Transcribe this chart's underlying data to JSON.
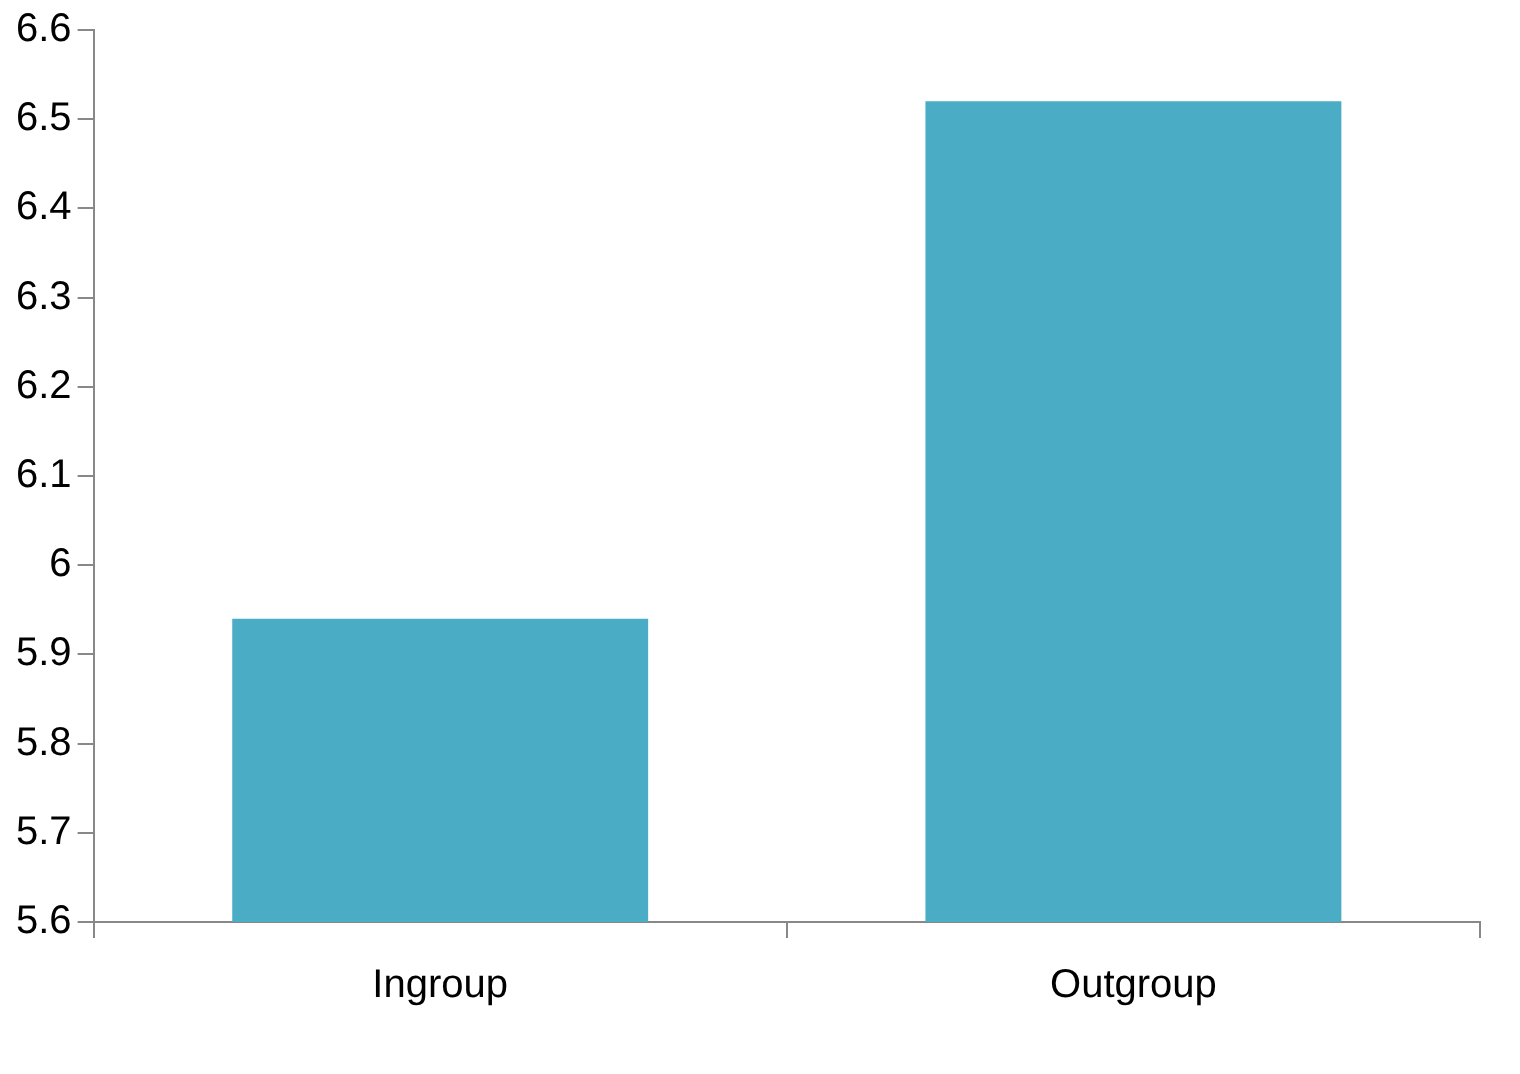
{
  "chart_data": {
    "type": "bar",
    "categories": [
      "Ingroup",
      "Outgroup"
    ],
    "values": [
      5.94,
      6.52
    ],
    "color": "#4bacc6",
    "ylim": [
      5.6,
      6.6
    ],
    "yticks": [
      {
        "value": 5.6,
        "label": "5.6"
      },
      {
        "value": 5.7,
        "label": "5.7"
      },
      {
        "value": 5.8,
        "label": "5.8"
      },
      {
        "value": 5.9,
        "label": "5.9"
      },
      {
        "value": 6,
        "label": "6"
      },
      {
        "value": 6.1,
        "label": "6.1"
      },
      {
        "value": 6.2,
        "label": "6.2"
      },
      {
        "value": 6.3,
        "label": "6.3"
      },
      {
        "value": 6.4,
        "label": "6.4"
      },
      {
        "value": 6.5,
        "label": "6.5"
      },
      {
        "value": 6.6,
        "label": "6.6"
      }
    ],
    "grid": false,
    "legend": false
  }
}
